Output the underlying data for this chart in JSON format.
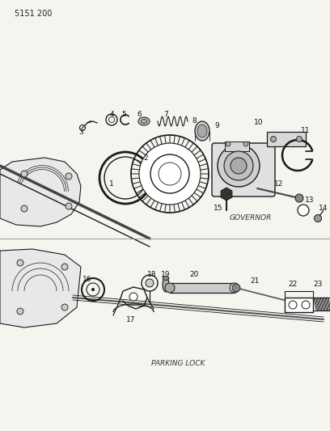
{
  "title_code": "5151 200",
  "bg_color": "#f5f5f0",
  "line_color": "#1a1a1a",
  "label_color": "#222222",
  "governor_label": "GOVERNOR",
  "parking_label": "PARKING LOCK",
  "fig_width": 4.08,
  "fig_height": 5.33,
  "dpi": 100
}
